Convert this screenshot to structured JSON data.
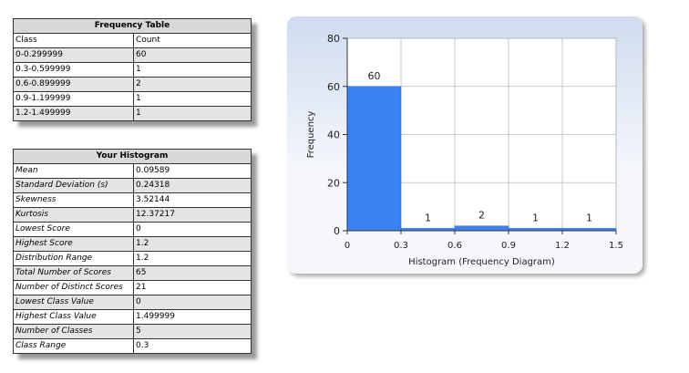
{
  "freq_table": {
    "title": "Frequency Table",
    "headers": [
      "Class",
      "Count"
    ],
    "rows": [
      [
        "0-0.299999",
        "60"
      ],
      [
        "0.3-0.599999",
        "1"
      ],
      [
        "0.6-0.899999",
        "2"
      ],
      [
        "0.9-1.199999",
        "1"
      ],
      [
        "1.2-1.499999",
        "1"
      ]
    ]
  },
  "stats_table": {
    "title": "Your Histogram",
    "rows": [
      [
        "Mean",
        "0.09589"
      ],
      [
        "Standard Deviation (s)",
        "0.24318"
      ],
      [
        "Skewness",
        "3.52144"
      ],
      [
        "Kurtosis",
        "12.37217"
      ],
      [
        "Lowest Score",
        "0"
      ],
      [
        "Highest Score",
        "1.2"
      ],
      [
        "Distribution Range",
        "1.2"
      ],
      [
        "Total Number of Scores",
        "65"
      ],
      [
        "Number of Distinct Scores",
        "21"
      ],
      [
        "Lowest Class Value",
        "0"
      ],
      [
        "Highest Class Value",
        "1.499999"
      ],
      [
        "Number of Classes",
        "5"
      ],
      [
        "Class Range",
        "0.3"
      ]
    ]
  },
  "chart_data": {
    "type": "bar",
    "title": "",
    "xlabel": "Histogram (Frequency Diagram)",
    "ylabel": "Frequency",
    "bins": [
      [
        0,
        0.3
      ],
      [
        0.3,
        0.6
      ],
      [
        0.6,
        0.9
      ],
      [
        0.9,
        1.2
      ],
      [
        1.2,
        1.5
      ]
    ],
    "values": [
      60,
      1,
      2,
      1,
      1
    ],
    "xlim": [
      0,
      1.5
    ],
    "ylim": [
      0,
      80
    ],
    "xticks": [
      "0",
      "0.3",
      "0.6",
      "0.9",
      "1.2",
      "1.5"
    ],
    "yticks": [
      "0",
      "20",
      "40",
      "60",
      "80"
    ],
    "grid": true,
    "bar_color": "#3b82f0"
  }
}
